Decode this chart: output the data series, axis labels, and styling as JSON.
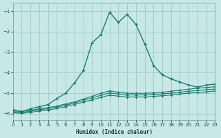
{
  "xlabel": "Humidex (Indice chaleur)",
  "background_color": "#c8e8e8",
  "grid_color": "#a0c8c8",
  "line_color": "#1a7a6e",
  "xlim": [
    0,
    23
  ],
  "ylim": [
    -6.3,
    -0.6
  ],
  "yticks": [
    -6,
    -5,
    -4,
    -3,
    -2,
    -1
  ],
  "xticks": [
    0,
    1,
    2,
    3,
    4,
    5,
    6,
    7,
    8,
    9,
    10,
    11,
    12,
    13,
    14,
    15,
    16,
    17,
    18,
    19,
    20,
    21,
    22,
    23
  ],
  "series": [
    {
      "y": [
        -5.8,
        -5.9,
        -5.75,
        -5.65,
        -5.55,
        -5.25,
        -5.0,
        -4.5,
        -3.9,
        -2.55,
        -2.15,
        -1.05,
        -1.55,
        -1.15,
        -1.65,
        -2.6,
        -3.65,
        -4.1,
        -4.3,
        -4.45,
        -4.6,
        -4.7,
        -4.6,
        -4.55
      ],
      "lw": 1.0,
      "ms": 3.5
    },
    {
      "y": [
        -5.85,
        -5.88,
        -5.82,
        -5.75,
        -5.7,
        -5.62,
        -5.52,
        -5.42,
        -5.28,
        -5.15,
        -5.0,
        -4.88,
        -4.95,
        -5.0,
        -5.0,
        -5.0,
        -4.98,
        -4.95,
        -4.9,
        -4.85,
        -4.8,
        -4.75,
        -4.72,
        -4.68
      ],
      "lw": 0.8,
      "ms": 2.5
    },
    {
      "y": [
        -5.9,
        -5.93,
        -5.87,
        -5.8,
        -5.75,
        -5.67,
        -5.58,
        -5.48,
        -5.35,
        -5.23,
        -5.1,
        -4.98,
        -5.04,
        -5.08,
        -5.08,
        -5.08,
        -5.06,
        -5.03,
        -4.99,
        -4.95,
        -4.9,
        -4.86,
        -4.83,
        -4.79
      ],
      "lw": 0.8,
      "ms": 2.5
    },
    {
      "y": [
        -5.95,
        -5.98,
        -5.93,
        -5.86,
        -5.82,
        -5.74,
        -5.65,
        -5.55,
        -5.43,
        -5.32,
        -5.2,
        -5.09,
        -5.14,
        -5.18,
        -5.18,
        -5.18,
        -5.15,
        -5.12,
        -5.08,
        -5.04,
        -4.99,
        -4.96,
        -4.93,
        -4.89
      ],
      "lw": 0.8,
      "ms": 2.5
    }
  ]
}
